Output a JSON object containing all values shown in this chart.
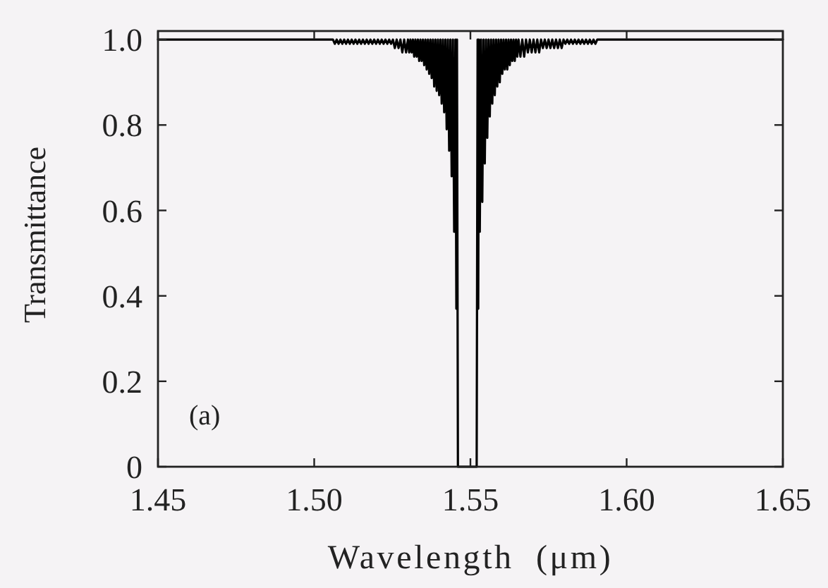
{
  "chart_data": {
    "type": "line",
    "xlabel": "Wavelength  (μm)",
    "ylabel": "Transmittance",
    "annotations": [
      "(a)"
    ],
    "xlim": [
      1.45,
      1.65
    ],
    "xticks": [
      1.45,
      {
        "value": 1.5,
        "label": "1.50"
      },
      1.55,
      {
        "value": 1.6,
        "label": "1.60"
      },
      1.65
    ],
    "ylim": [
      0,
      1.02
    ],
    "yticks": [
      0,
      0.2,
      0.4,
      0.6,
      0.8,
      {
        "value": 1,
        "label": "1.0"
      }
    ],
    "series": [
      {
        "color": "#000000",
        "x": [
          1.45,
          1.506,
          1.5066,
          1.5072,
          1.5078,
          1.5084,
          1.509,
          1.5096,
          1.5102,
          1.5108,
          1.5114,
          1.512,
          1.5126,
          1.5132,
          1.5138,
          1.5144,
          1.515,
          1.5156,
          1.5162,
          1.5168,
          1.5174,
          1.518,
          1.5186,
          1.5192,
          1.5198,
          1.5204,
          1.521,
          1.5216,
          1.5222,
          1.5228,
          1.5234,
          1.524,
          1.5246,
          1.5252,
          1.5258,
          1.5264,
          1.527,
          1.5276,
          1.5282,
          1.5288,
          1.5294,
          1.53,
          1.5304,
          1.5308,
          1.5312,
          1.5316,
          1.532,
          1.5324,
          1.5328,
          1.5332,
          1.5336,
          1.534,
          1.5344,
          1.5348,
          1.5352,
          1.5356,
          1.536,
          1.5364,
          1.5368,
          1.5372,
          1.5376,
          1.538,
          1.5384,
          1.5388,
          1.5392,
          1.5396,
          1.54,
          1.5404,
          1.5408,
          1.5412,
          1.5416,
          1.542,
          1.5424,
          1.5428,
          1.5432,
          1.5436,
          1.544,
          1.5444,
          1.5448,
          1.5452,
          1.5455,
          1.5457,
          1.546,
          1.552,
          1.5523,
          1.5525,
          1.5527,
          1.553,
          1.5534,
          1.5538,
          1.5542,
          1.5546,
          1.555,
          1.5554,
          1.5558,
          1.5562,
          1.5566,
          1.557,
          1.5574,
          1.5578,
          1.5582,
          1.5586,
          1.559,
          1.5594,
          1.5598,
          1.5602,
          1.5606,
          1.561,
          1.5614,
          1.5618,
          1.5622,
          1.5626,
          1.563,
          1.5634,
          1.5638,
          1.5642,
          1.5646,
          1.565,
          1.5654,
          1.566,
          1.5666,
          1.5672,
          1.5678,
          1.5684,
          1.569,
          1.5696,
          1.5702,
          1.5708,
          1.5714,
          1.572,
          1.5726,
          1.5732,
          1.5738,
          1.5744,
          1.575,
          1.5756,
          1.5762,
          1.5768,
          1.5774,
          1.578,
          1.5786,
          1.5792,
          1.5798,
          1.5804,
          1.581,
          1.5816,
          1.5822,
          1.5828,
          1.5834,
          1.584,
          1.5846,
          1.5852,
          1.5858,
          1.5864,
          1.587,
          1.5876,
          1.5882,
          1.5888,
          1.5894,
          1.59,
          1.5906,
          1.65
        ],
        "values": [
          1,
          1,
          0.99,
          1,
          0.99,
          1,
          0.99,
          1,
          0.99,
          1,
          0.99,
          1,
          0.99,
          1,
          0.99,
          1,
          0.99,
          1,
          0.99,
          1,
          0.99,
          1,
          0.99,
          1,
          0.99,
          1,
          0.99,
          1,
          0.99,
          1,
          0.99,
          1,
          0.99,
          1,
          0.98,
          1,
          0.98,
          1,
          0.97,
          1,
          0.97,
          1,
          0.97,
          1,
          0.97,
          1,
          0.96,
          1,
          0.96,
          1,
          0.95,
          1,
          0.95,
          1,
          0.94,
          1,
          0.93,
          1,
          0.92,
          1,
          0.91,
          1,
          0.89,
          1,
          0.88,
          1,
          0.87,
          1,
          0.85,
          1,
          0.83,
          1,
          0.79,
          1,
          0.74,
          1,
          0.68,
          1,
          0.55,
          1,
          0.37,
          1,
          0,
          0,
          1,
          0.37,
          1,
          0.55,
          1,
          0.62,
          1,
          0.71,
          1,
          0.77,
          1,
          0.82,
          1,
          0.85,
          1,
          0.87,
          1,
          0.89,
          1,
          0.9,
          1,
          0.92,
          1,
          0.93,
          1,
          0.93,
          1,
          0.94,
          1,
          0.95,
          1,
          0.95,
          1,
          0.96,
          1,
          0.96,
          1,
          0.96,
          1,
          0.97,
          1,
          0.97,
          1,
          0.97,
          1,
          0.97,
          1,
          0.98,
          1,
          0.98,
          1,
          0.98,
          1,
          0.98,
          1,
          0.98,
          1,
          0.98,
          1,
          0.99,
          1,
          0.99,
          1,
          0.99,
          1,
          0.99,
          1,
          0.99,
          1,
          0.99,
          1,
          0.99,
          1,
          0.99,
          1,
          0.99,
          1,
          1
        ]
      }
    ]
  }
}
